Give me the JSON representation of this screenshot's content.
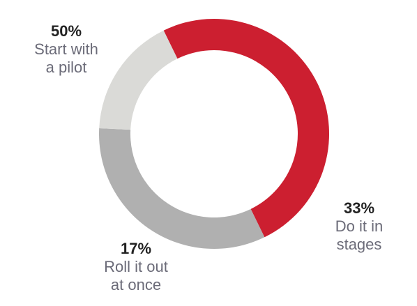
{
  "chart_data": {
    "type": "pie",
    "donut": true,
    "slices": [
      {
        "label_lines": [
          "Start with",
          "a pilot"
        ],
        "value": 50,
        "value_label": "50%",
        "color": "#cc1f30"
      },
      {
        "label_lines": [
          "Do it in",
          "stages"
        ],
        "value": 33,
        "value_label": "33%",
        "color": "#b0b0b0"
      },
      {
        "label_lines": [
          "Roll it out",
          "at once"
        ],
        "value": 17,
        "value_label": "17%",
        "color": "#dadad7"
      }
    ]
  }
}
